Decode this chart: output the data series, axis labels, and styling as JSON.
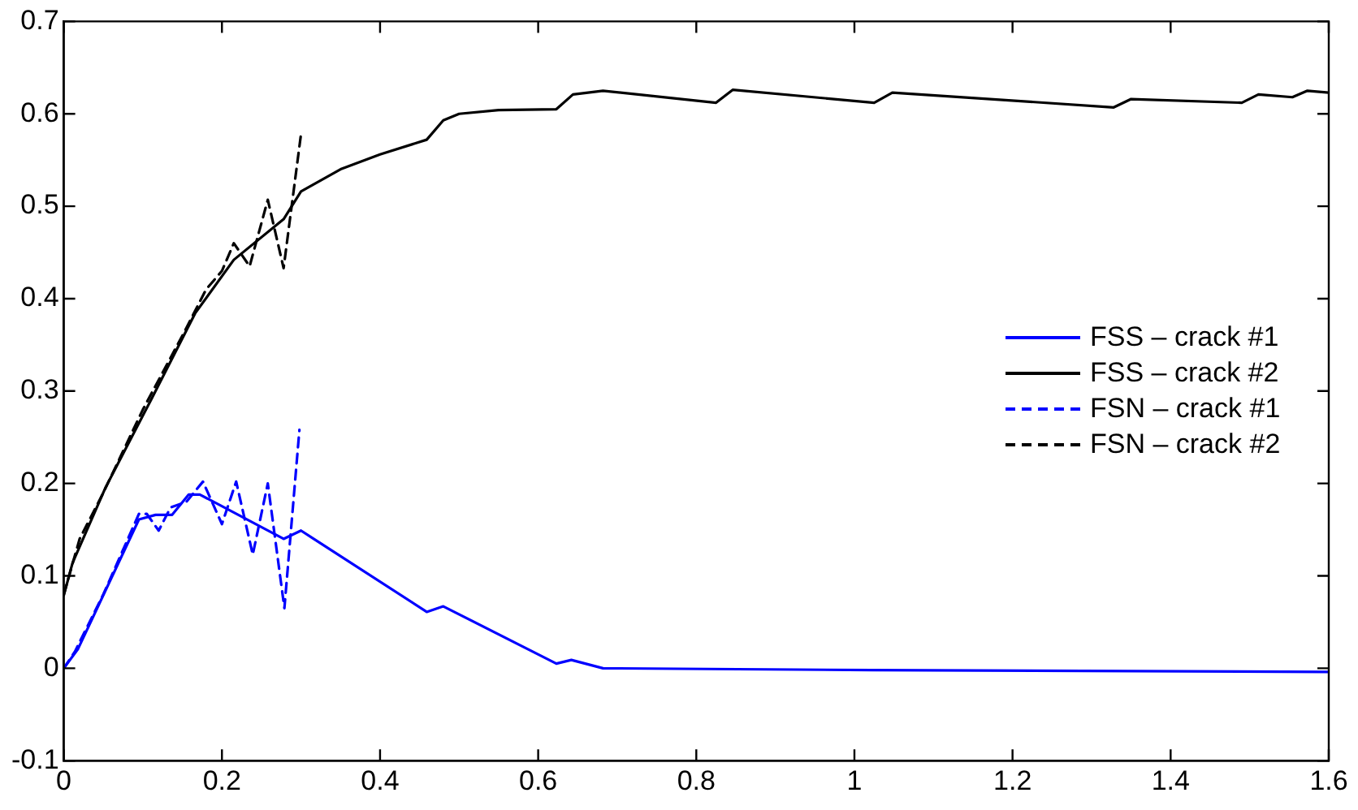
{
  "chart_data": {
    "type": "line",
    "xlim": [
      0,
      1.6
    ],
    "xticks": [
      0,
      0.2,
      0.4,
      0.6,
      0.8,
      1,
      1.2,
      1.4,
      1.6
    ],
    "ylim": [
      -0.1,
      0.7
    ],
    "yticks": [
      -0.1,
      0,
      0.1,
      0.2,
      0.3,
      0.4,
      0.5,
      0.6,
      0.7
    ],
    "grid": false,
    "legend": "right",
    "marker": "none",
    "series": [
      {
        "name": "FSS – crack #1",
        "color": "#0000ff",
        "line_style": "solid",
        "x": [
          0,
          0.018,
          0.095,
          0.116,
          0.137,
          0.158,
          0.172,
          0.278,
          0.3,
          0.316,
          0.459,
          0.48,
          0.623,
          0.642,
          0.682,
          1.023,
          1.6
        ],
        "values": [
          0,
          0.021,
          0.161,
          0.166,
          0.166,
          0.188,
          0.188,
          0.14,
          0.149,
          0.14,
          0.061,
          0.067,
          0.005,
          0.009,
          0,
          -0.002,
          -0.004
        ]
      },
      {
        "name": "FSS – crack #2",
        "color": "#000000",
        "line_style": "solid",
        "x": [
          0,
          0.011,
          0.053,
          0.11,
          0.166,
          0.215,
          0.278,
          0.3,
          0.35,
          0.4,
          0.459,
          0.48,
          0.5,
          0.55,
          0.623,
          0.644,
          0.682,
          0.825,
          0.846,
          1.025,
          1.048,
          1.328,
          1.35,
          1.49,
          1.511,
          1.554,
          1.573,
          1.6
        ],
        "values": [
          0.079,
          0.114,
          0.196,
          0.29,
          0.384,
          0.442,
          0.486,
          0.516,
          0.54,
          0.556,
          0.572,
          0.593,
          0.6,
          0.604,
          0.605,
          0.621,
          0.625,
          0.612,
          0.626,
          0.612,
          0.623,
          0.607,
          0.616,
          0.612,
          0.621,
          0.618,
          0.625,
          0.623
        ]
      },
      {
        "name": "FSN – crack #1",
        "color": "#0000ff",
        "line_style": "dashed",
        "x": [
          0,
          0.014,
          0.05,
          0.095,
          0.105,
          0.12,
          0.135,
          0.155,
          0.176,
          0.2,
          0.218,
          0.239,
          0.258,
          0.279,
          0.298
        ],
        "values": [
          0,
          0.018,
          0.08,
          0.167,
          0.167,
          0.149,
          0.174,
          0.18,
          0.202,
          0.156,
          0.202,
          0.123,
          0.2,
          0.065,
          0.258
        ]
      },
      {
        "name": "FSN – crack #2",
        "color": "#000000",
        "line_style": "dashed",
        "x": [
          0,
          0.02,
          0.05,
          0.1,
          0.15,
          0.18,
          0.2,
          0.215,
          0.235,
          0.258,
          0.278,
          0.3
        ],
        "values": [
          0.08,
          0.14,
          0.19,
          0.28,
          0.36,
          0.41,
          0.43,
          0.46,
          0.435,
          0.507,
          0.433,
          0.578
        ]
      }
    ]
  }
}
